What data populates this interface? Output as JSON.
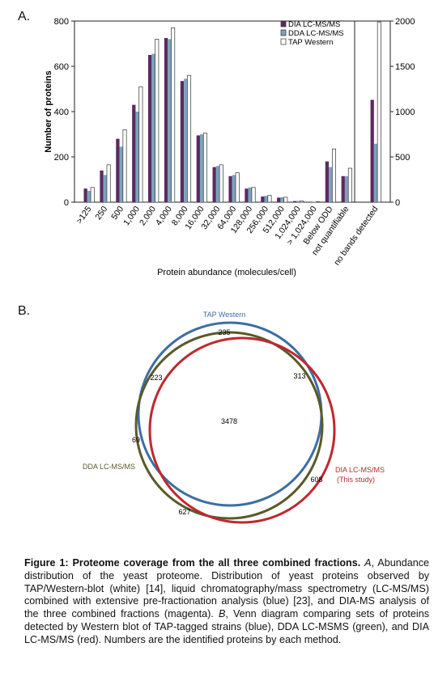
{
  "panel_a": {
    "letter": "A."
  },
  "panel_b": {
    "letter": "B."
  },
  "chart_data": {
    "type": "bar",
    "xlabel": "Protein abundance (molecules/cell)",
    "ylabel": "Number of proteins",
    "categories": [
      ">125",
      "250",
      "500",
      "1,000",
      "2,000",
      "4,000",
      "8,000",
      "16,000",
      "32,000",
      "64,000",
      "128,000",
      "256,000",
      "512,000",
      "1,024,000",
      "> 1,024,000",
      "Below ODD",
      "not quantifiable"
    ],
    "extra_category": "no bands detected",
    "ylim": [
      0,
      800
    ],
    "yticks": [
      "0",
      "200",
      "400",
      "600",
      "800"
    ],
    "y2lim": [
      0,
      2000
    ],
    "y2ticks": [
      "0",
      "500",
      "1000",
      "1500",
      "2000"
    ],
    "legend_position": "top-right",
    "series": [
      {
        "name": "DIA LC-MS/MS",
        "color": "#5b2a5f",
        "values": [
          60,
          140,
          280,
          430,
          650,
          725,
          535,
          295,
          155,
          115,
          60,
          25,
          20,
          5,
          2,
          180,
          115
        ],
        "extra_value": 1130
      },
      {
        "name": "DDA LC-MS/MS",
        "color": "#7aa3bf",
        "values": [
          50,
          120,
          245,
          400,
          655,
          720,
          545,
          300,
          160,
          120,
          65,
          28,
          22,
          6,
          2,
          155,
          115
        ],
        "extra_value": 645
      },
      {
        "name": "TAP Western",
        "color": "#ffffff",
        "values": [
          65,
          165,
          320,
          510,
          720,
          770,
          560,
          305,
          165,
          130,
          65,
          30,
          22,
          5,
          2,
          235,
          150
        ],
        "extra_value": 1990
      }
    ]
  },
  "venn": {
    "labels": {
      "tap": "TAP Western",
      "dda": "DDA LC-MS/MS",
      "dia_line1": "DIA LC-MS/MS",
      "dia_line2": "(This study)"
    },
    "counts": {
      "tap_only": "235",
      "tap_dda": "223",
      "tap_dia": "313",
      "center": "3478",
      "dda_only": "69",
      "dia_only": "608",
      "dda_dia": "627"
    },
    "colors": {
      "tap": "#3d6ea3",
      "dda": "#5a5a2a",
      "dia": "#c0282e"
    }
  },
  "caption": {
    "title": "Figure 1: Proteome coverage from the all three combined fractions.",
    "a_letter": "A",
    "a_text": ", Abundance distribution of the yeast proteome. Distribution of yeast proteins observed by TAP/Western-blot (white) [14], liquid chromatography/mass spectrometry (LC-MS/MS) combined with extensive pre-fractionation analysis (blue) [23], and DIA-MS analysis of the three combined fractions (magenta).",
    "b_letter": "B",
    "b_text": ", Venn diagram comparing sets of proteins detected by Western blot of TAP-tagged strains (blue), DDA LC-MSMS (green), and DIA LC-MS/MS (red). Numbers are the identified proteins by each method."
  }
}
